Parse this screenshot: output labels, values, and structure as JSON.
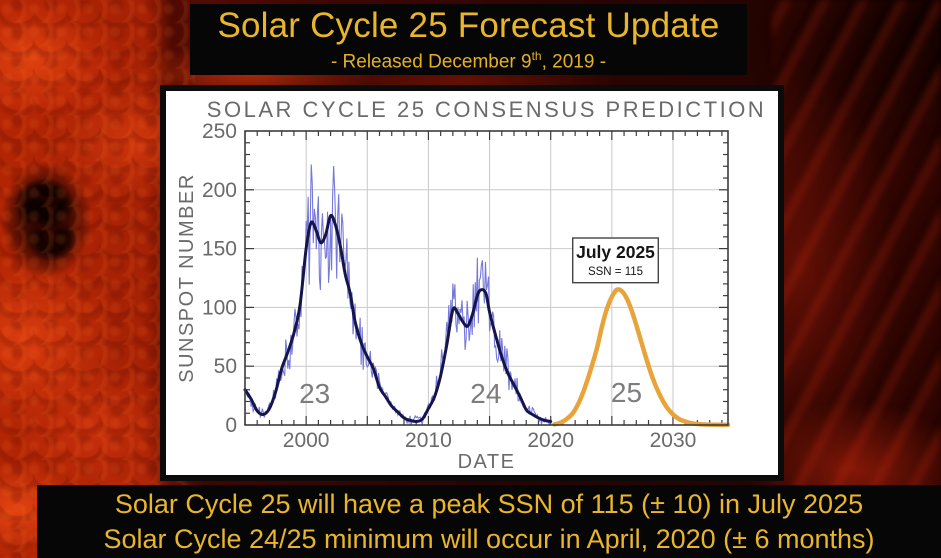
{
  "header": {
    "title": "Solar Cycle 25 Forecast Update",
    "subtitle_prefix": "- Released December 9",
    "subtitle_sup": "th",
    "subtitle_suffix": ", 2019 -"
  },
  "footer": {
    "line1": "Solar Cycle 25 will have a peak SSN of 115 (± 10) in July 2025",
    "line2": "Solar Cycle 24/25 minimum will occur in April, 2020 (± 6 months)"
  },
  "colors": {
    "banner_text": "#E9B62B",
    "banner_bg": "#060606",
    "observed_monthly": "#7678DA",
    "observed_smoothed": "#15154B",
    "prediction": "#E8A33B",
    "grid": "#C9C9C9",
    "axis": "#3C3C3C",
    "chart_text": "#6A6A6A",
    "cycle_label": "#7D7D7D"
  },
  "chart_data": {
    "type": "line",
    "title": "SOLAR CYCLE 25 CONSENSUS PREDICTION",
    "xlabel": "DATE",
    "ylabel": "SUNSPOT NUMBER",
    "xlim": [
      1995,
      2034.5
    ],
    "ylim": [
      0,
      250
    ],
    "x_major_ticks": [
      2000,
      2010,
      2020,
      2030
    ],
    "y_major_ticks": [
      0,
      50,
      100,
      150,
      200,
      250
    ],
    "grid_x_step": 5,
    "grid_y_step": 50,
    "grid": true,
    "legend": "none",
    "series": [
      {
        "name": "observed monthly sunspot number",
        "style": "jagged",
        "color": "#7678DA",
        "derived_from": "observed smoothed",
        "x_start": 1995.0,
        "x_end": 2020.0,
        "noise": {
          "seed": 42,
          "rel": 0.28,
          "abs": 4,
          "spike_prob": 0.07,
          "spike_rel": 0.22,
          "max": 246
        }
      },
      {
        "name": "observed smoothed sunspot number",
        "color": "#15154B",
        "points": [
          [
            1995.0,
            30
          ],
          [
            1995.5,
            22
          ],
          [
            1996.0,
            12
          ],
          [
            1996.5,
            9
          ],
          [
            1997.0,
            14
          ],
          [
            1997.5,
            28
          ],
          [
            1998.0,
            48
          ],
          [
            1998.5,
            62
          ],
          [
            1999.0,
            78
          ],
          [
            1999.5,
            102
          ],
          [
            2000.0,
            150
          ],
          [
            2000.4,
            172
          ],
          [
            2000.8,
            166
          ],
          [
            2001.2,
            155
          ],
          [
            2001.6,
            162
          ],
          [
            2002.0,
            178
          ],
          [
            2002.4,
            170
          ],
          [
            2002.8,
            152
          ],
          [
            2003.2,
            128
          ],
          [
            2003.6,
            112
          ],
          [
            2004.0,
            88
          ],
          [
            2004.5,
            70
          ],
          [
            2005.0,
            58
          ],
          [
            2005.5,
            48
          ],
          [
            2006.0,
            32
          ],
          [
            2006.5,
            24
          ],
          [
            2007.0,
            16
          ],
          [
            2007.5,
            11
          ],
          [
            2008.0,
            6
          ],
          [
            2008.5,
            4
          ],
          [
            2009.0,
            3
          ],
          [
            2009.5,
            5
          ],
          [
            2010.0,
            14
          ],
          [
            2010.5,
            24
          ],
          [
            2011.0,
            42
          ],
          [
            2011.5,
            68
          ],
          [
            2012.0,
            98
          ],
          [
            2012.4,
            95
          ],
          [
            2012.8,
            88
          ],
          [
            2013.2,
            84
          ],
          [
            2013.6,
            94
          ],
          [
            2014.0,
            110
          ],
          [
            2014.3,
            115
          ],
          [
            2014.7,
            112
          ],
          [
            2015.0,
            96
          ],
          [
            2015.5,
            76
          ],
          [
            2016.0,
            58
          ],
          [
            2016.5,
            44
          ],
          [
            2017.0,
            34
          ],
          [
            2017.5,
            24
          ],
          [
            2018.0,
            13
          ],
          [
            2018.5,
            9
          ],
          [
            2019.0,
            6
          ],
          [
            2019.5,
            4
          ],
          [
            2020.0,
            3
          ]
        ]
      },
      {
        "name": "cycle 25 consensus prediction",
        "color": "#E8A33B",
        "points": [
          [
            2020.3,
            0.5
          ],
          [
            2020.8,
            2
          ],
          [
            2021.3,
            5
          ],
          [
            2021.8,
            10
          ],
          [
            2022.3,
            19
          ],
          [
            2022.8,
            32
          ],
          [
            2023.3,
            48
          ],
          [
            2023.8,
            66
          ],
          [
            2024.2,
            84
          ],
          [
            2024.6,
            99
          ],
          [
            2025.0,
            109
          ],
          [
            2025.4,
            115
          ],
          [
            2025.8,
            114
          ],
          [
            2026.2,
            108
          ],
          [
            2026.6,
            98
          ],
          [
            2027.0,
            85
          ],
          [
            2027.4,
            71
          ],
          [
            2027.8,
            57
          ],
          [
            2028.2,
            44
          ],
          [
            2028.6,
            33
          ],
          [
            2029.0,
            24
          ],
          [
            2029.5,
            15
          ],
          [
            2030.0,
            9
          ],
          [
            2030.5,
            5
          ],
          [
            2031.0,
            3
          ],
          [
            2031.5,
            1.5
          ],
          [
            2032.0,
            0.8
          ],
          [
            2033.0,
            0.3
          ],
          [
            2034.5,
            0.1
          ]
        ]
      }
    ],
    "cycle_labels": [
      {
        "text": "23",
        "x": 2000.7,
        "y": 27
      },
      {
        "text": "24",
        "x": 2014.7,
        "y": 27
      },
      {
        "text": "25",
        "x": 2026.2,
        "y": 28
      }
    ],
    "annotation": {
      "line1": "July 2025",
      "line2": "SSN = 115",
      "box": {
        "x0": 2021.8,
        "y_top": 159,
        "w_years": 7.0,
        "h_units": 38
      }
    }
  }
}
